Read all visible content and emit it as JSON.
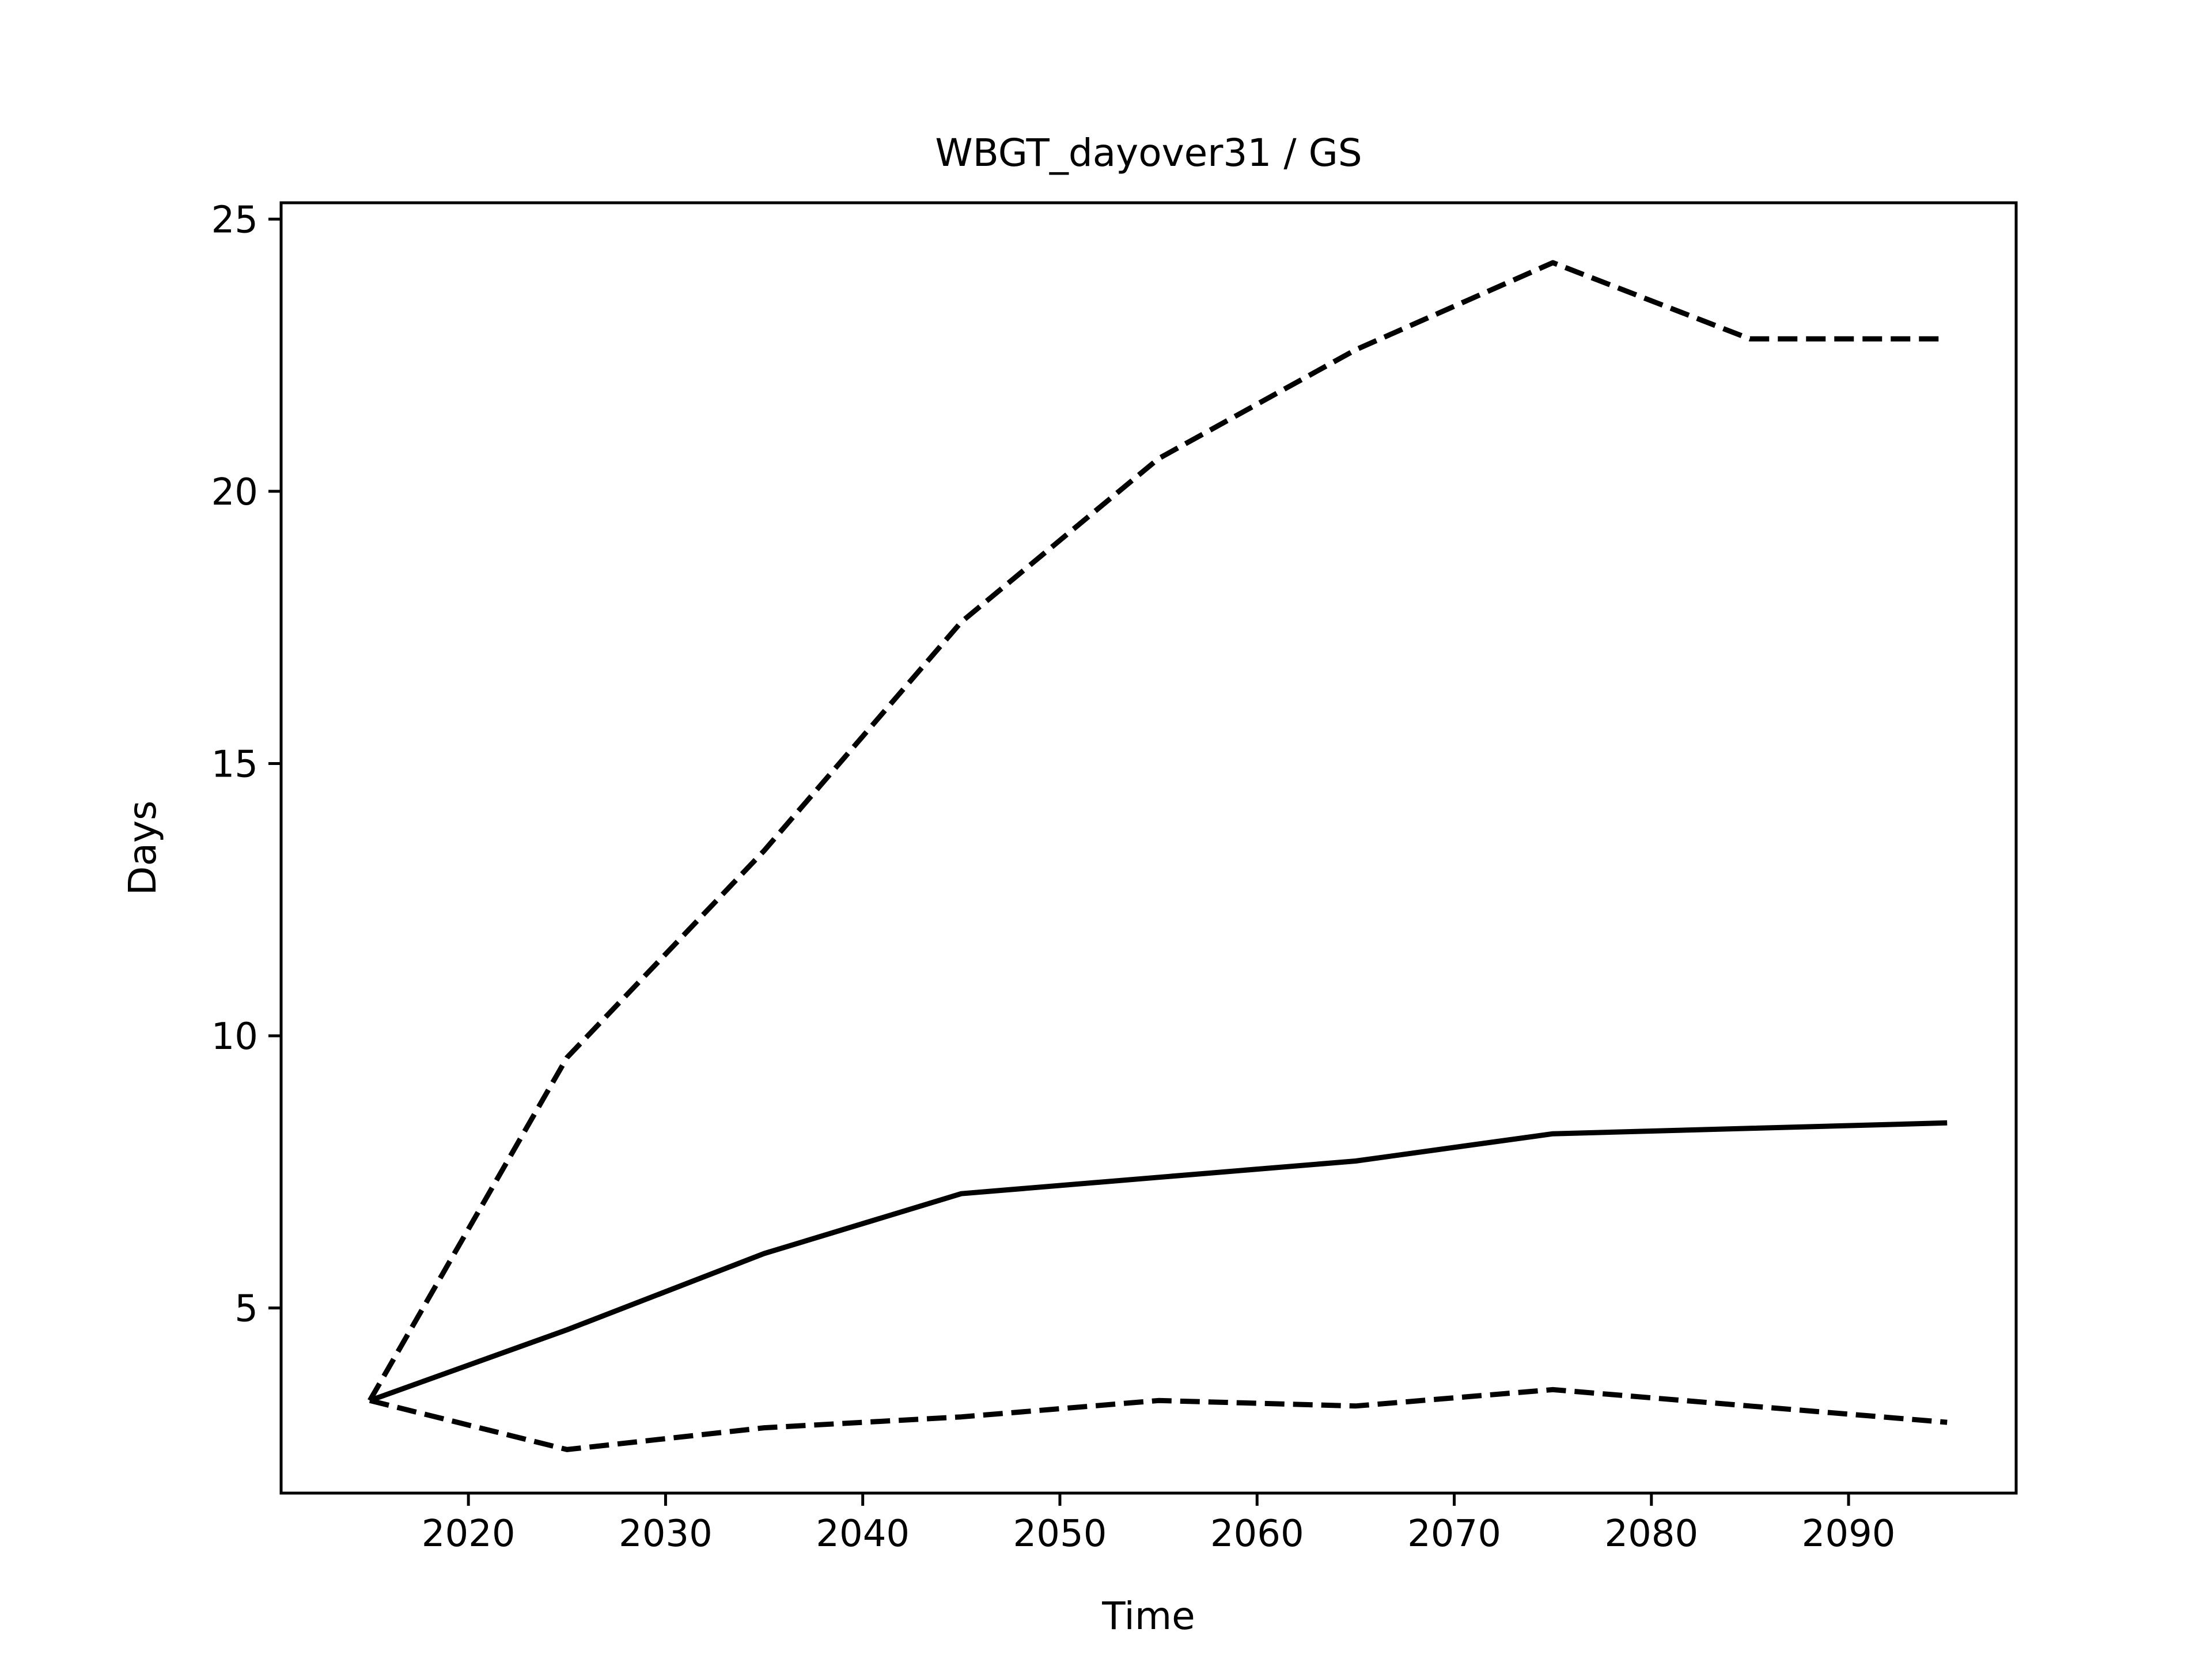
{
  "chart_data": {
    "type": "line",
    "title": "WBGT_dayover31 / GS",
    "xlabel": "Time",
    "ylabel": "Days",
    "xlim": [
      2010.5,
      2098.5
    ],
    "ylim": [
      1.6,
      25.3
    ],
    "xticks": [
      2020,
      2030,
      2040,
      2050,
      2060,
      2070,
      2080,
      2090
    ],
    "yticks": [
      5,
      10,
      15,
      20,
      25
    ],
    "grid": false,
    "legend": "none",
    "x": [
      2015,
      2025,
      2035,
      2045,
      2055,
      2065,
      2075,
      2085,
      2095
    ],
    "series": [
      {
        "style": "solid",
        "color": "#000000",
        "values": [
          3.3,
          4.6,
          6.0,
          7.1,
          7.4,
          7.7,
          8.2,
          8.3,
          8.4
        ]
      },
      {
        "style": "dashed",
        "color": "#000000",
        "values": [
          3.3,
          9.6,
          13.4,
          17.6,
          20.6,
          22.6,
          24.2,
          22.8,
          22.8
        ]
      },
      {
        "style": "dashed",
        "color": "#000000",
        "values": [
          3.3,
          2.4,
          2.8,
          3.0,
          3.3,
          3.2,
          3.5,
          3.2,
          2.9
        ]
      }
    ]
  }
}
